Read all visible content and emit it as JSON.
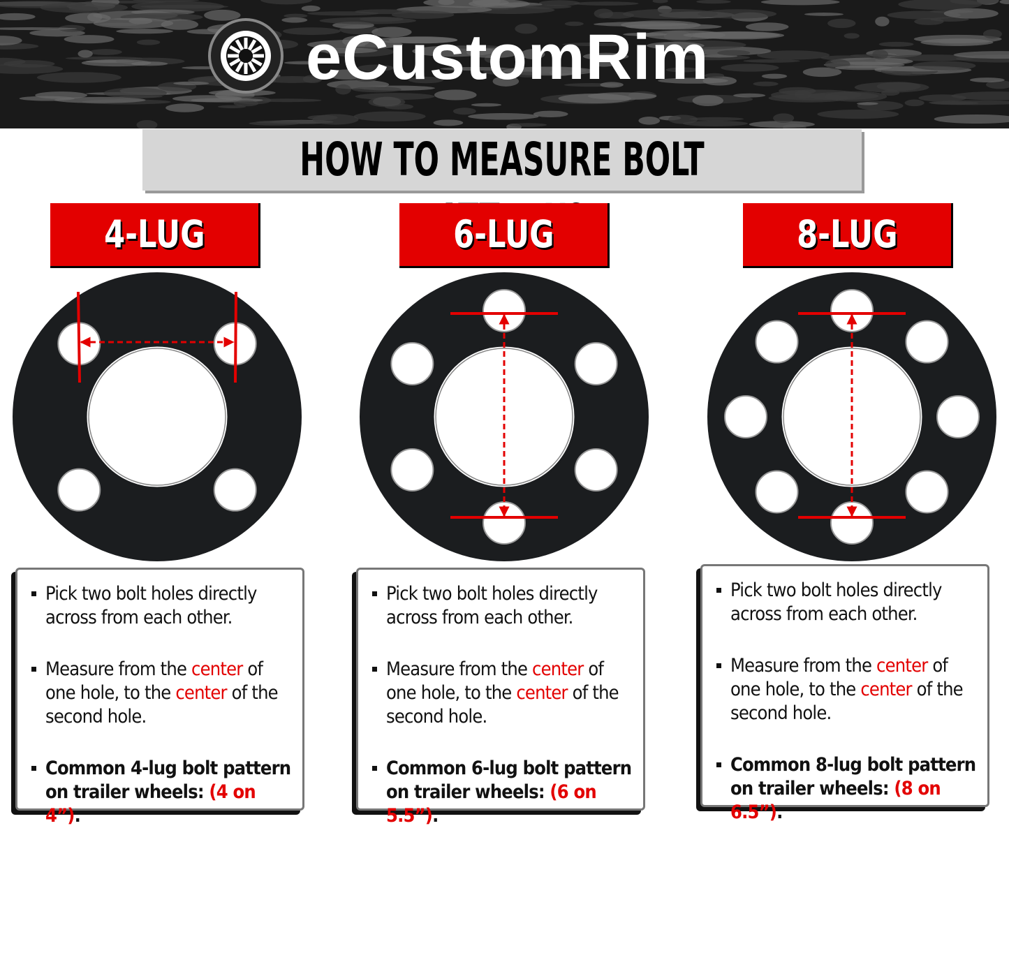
{
  "header": {
    "brand": "eCustomRim",
    "title": "HOW TO MEASURE BOLT PATTERN?"
  },
  "panels": [
    {
      "label": "4-LUG",
      "bullets": [
        [
          "Pick two bolt holes directly across from each other."
        ],
        [
          "Measure from the ",
          "center",
          " of one hole, to the ",
          "center",
          " of the second hole."
        ],
        [
          "Common 4-lug bolt pattern on trailer wheels: ",
          "(4 on 4”)",
          "."
        ]
      ]
    },
    {
      "label": "6-LUG",
      "bullets": [
        [
          "Pick two bolt holes directly across from each other."
        ],
        [
          "Measure from the ",
          "center",
          " of one hole, to the ",
          "center",
          " of the second hole."
        ],
        [
          "Common 6-lug bolt pattern on trailer wheels: ",
          "(6 on 5.5”)",
          "."
        ]
      ]
    },
    {
      "label": "8-LUG",
      "bullets": [
        [
          "Pick two bolt holes directly across from each other."
        ],
        [
          "Measure from the ",
          "center",
          " of one hole, to the ",
          "center",
          " of the second hole."
        ],
        [
          "Common 8-lug bolt pattern on trailer wheels: ",
          "(8 on 6.5”)",
          "."
        ]
      ]
    }
  ]
}
